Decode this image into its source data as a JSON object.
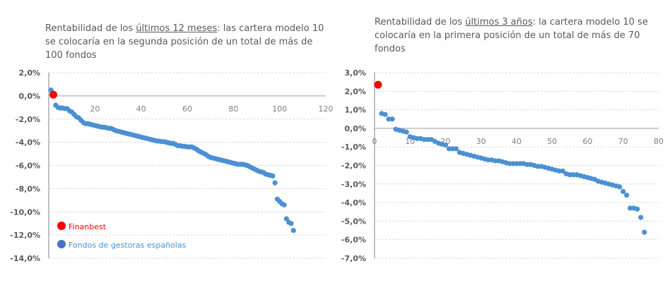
{
  "colors": {
    "fund": "#4a90d4",
    "finanbest": "#ff0000",
    "legend_fund": "#4472c4",
    "grid": "#d9d9d9",
    "axis": "#bfbfbf"
  },
  "chart_data": [
    {
      "type": "scatter",
      "title_parts": [
        "Rentabilidad de los ",
        "últimos 12 meses",
        ": las cartera modelo 10 se colocaría en la segunda posición de un total de más de 100 fondos"
      ],
      "xlim": [
        0,
        120
      ],
      "ylim": [
        -14,
        2
      ],
      "x_ticks": [
        "20",
        "40",
        "60",
        "80",
        "100",
        "120"
      ],
      "y_ticks": [
        "2,0%",
        "0,0%",
        "-2,0%",
        "-4,0%",
        "-6,0%",
        "-8,0%",
        "-10,0%",
        "-12,0%",
        "-14,0%"
      ],
      "grid": true,
      "legend": "bottom-left",
      "series": [
        {
          "name": "Finanbest",
          "points": [
            [
              2,
              0.1
            ]
          ]
        },
        {
          "name": "Fondos  de gestoras  españolas",
          "points": [
            [
              1,
              0.5
            ],
            [
              3,
              -0.8
            ],
            [
              4,
              -1.0
            ],
            [
              5,
              -1.05
            ],
            [
              6,
              -1.05
            ],
            [
              7,
              -1.1
            ],
            [
              8,
              -1.1
            ],
            [
              9,
              -1.3
            ],
            [
              10,
              -1.4
            ],
            [
              11,
              -1.6
            ],
            [
              12,
              -1.8
            ],
            [
              13,
              -1.9
            ],
            [
              14,
              -2.1
            ],
            [
              15,
              -2.3
            ],
            [
              16,
              -2.4
            ],
            [
              17,
              -2.4
            ],
            [
              18,
              -2.45
            ],
            [
              19,
              -2.5
            ],
            [
              20,
              -2.55
            ],
            [
              21,
              -2.6
            ],
            [
              22,
              -2.65
            ],
            [
              23,
              -2.7
            ],
            [
              24,
              -2.7
            ],
            [
              25,
              -2.75
            ],
            [
              26,
              -2.8
            ],
            [
              27,
              -2.8
            ],
            [
              28,
              -2.9
            ],
            [
              29,
              -3.0
            ],
            [
              30,
              -3.05
            ],
            [
              31,
              -3.1
            ],
            [
              32,
              -3.15
            ],
            [
              33,
              -3.2
            ],
            [
              34,
              -3.25
            ],
            [
              35,
              -3.3
            ],
            [
              36,
              -3.35
            ],
            [
              37,
              -3.4
            ],
            [
              38,
              -3.45
            ],
            [
              39,
              -3.5
            ],
            [
              40,
              -3.55
            ],
            [
              41,
              -3.6
            ],
            [
              42,
              -3.65
            ],
            [
              43,
              -3.7
            ],
            [
              44,
              -3.75
            ],
            [
              45,
              -3.8
            ],
            [
              46,
              -3.85
            ],
            [
              47,
              -3.9
            ],
            [
              48,
              -3.9
            ],
            [
              49,
              -3.95
            ],
            [
              50,
              -3.95
            ],
            [
              51,
              -4.0
            ],
            [
              52,
              -4.05
            ],
            [
              53,
              -4.1
            ],
            [
              54,
              -4.1
            ],
            [
              55,
              -4.2
            ],
            [
              56,
              -4.3
            ],
            [
              57,
              -4.3
            ],
            [
              58,
              -4.35
            ],
            [
              59,
              -4.35
            ],
            [
              60,
              -4.4
            ],
            [
              61,
              -4.4
            ],
            [
              62,
              -4.4
            ],
            [
              63,
              -4.5
            ],
            [
              64,
              -4.6
            ],
            [
              65,
              -4.75
            ],
            [
              66,
              -4.85
            ],
            [
              67,
              -4.95
            ],
            [
              68,
              -5.05
            ],
            [
              69,
              -5.2
            ],
            [
              70,
              -5.3
            ],
            [
              71,
              -5.35
            ],
            [
              72,
              -5.4
            ],
            [
              73,
              -5.45
            ],
            [
              74,
              -5.5
            ],
            [
              75,
              -5.55
            ],
            [
              76,
              -5.6
            ],
            [
              77,
              -5.65
            ],
            [
              78,
              -5.7
            ],
            [
              79,
              -5.75
            ],
            [
              80,
              -5.8
            ],
            [
              81,
              -5.85
            ],
            [
              82,
              -5.9
            ],
            [
              83,
              -5.9
            ],
            [
              84,
              -5.9
            ],
            [
              85,
              -5.95
            ],
            [
              86,
              -6.0
            ],
            [
              87,
              -6.1
            ],
            [
              88,
              -6.2
            ],
            [
              89,
              -6.3
            ],
            [
              90,
              -6.4
            ],
            [
              91,
              -6.5
            ],
            [
              92,
              -6.55
            ],
            [
              93,
              -6.6
            ],
            [
              94,
              -6.75
            ],
            [
              95,
              -6.8
            ],
            [
              96,
              -6.85
            ],
            [
              97,
              -6.9
            ],
            [
              98,
              -7.5
            ],
            [
              99,
              -8.9
            ],
            [
              100,
              -9.1
            ],
            [
              101,
              -9.3
            ],
            [
              102,
              -9.4
            ],
            [
              103,
              -10.6
            ],
            [
              104,
              -10.9
            ],
            [
              105,
              -11.0
            ],
            [
              106,
              -11.6
            ]
          ]
        }
      ]
    },
    {
      "type": "scatter",
      "title_parts": [
        "Rentabilidad de los ",
        "últimos 3 años",
        ": la cartera modelo 10 se colocaría en la primera posición de un total de más de 70 fondos"
      ],
      "xlim": [
        0,
        80
      ],
      "ylim": [
        -7,
        3
      ],
      "x_ticks": [
        "0",
        "10",
        "20",
        "30",
        "40",
        "50",
        "60",
        "70",
        "80"
      ],
      "y_ticks": [
        "3,0%",
        "2,0%",
        "1,0%",
        "0,0%",
        "-1,0%",
        "-2,0%",
        "-3,0%",
        "-4,0%",
        "-5,0%",
        "-6,0%",
        "-7,0%"
      ],
      "grid": true,
      "series": [
        {
          "name": "Finanbest",
          "points": [
            [
              1,
              2.35
            ]
          ]
        },
        {
          "name": "Fondos  de gestoras  españolas",
          "points": [
            [
              2,
              0.8
            ],
            [
              3,
              0.75
            ],
            [
              4,
              0.5
            ],
            [
              5,
              0.5
            ],
            [
              6,
              -0.05
            ],
            [
              7,
              -0.1
            ],
            [
              8,
              -0.15
            ],
            [
              9,
              -0.2
            ],
            [
              10,
              -0.45
            ],
            [
              11,
              -0.5
            ],
            [
              12,
              -0.55
            ],
            [
              13,
              -0.55
            ],
            [
              14,
              -0.6
            ],
            [
              15,
              -0.6
            ],
            [
              16,
              -0.6
            ],
            [
              17,
              -0.7
            ],
            [
              18,
              -0.8
            ],
            [
              19,
              -0.85
            ],
            [
              20,
              -0.9
            ],
            [
              21,
              -1.1
            ],
            [
              22,
              -1.1
            ],
            [
              23,
              -1.1
            ],
            [
              24,
              -1.3
            ],
            [
              25,
              -1.35
            ],
            [
              26,
              -1.4
            ],
            [
              27,
              -1.45
            ],
            [
              28,
              -1.5
            ],
            [
              29,
              -1.55
            ],
            [
              30,
              -1.6
            ],
            [
              31,
              -1.65
            ],
            [
              32,
              -1.7
            ],
            [
              33,
              -1.7
            ],
            [
              34,
              -1.75
            ],
            [
              35,
              -1.75
            ],
            [
              36,
              -1.8
            ],
            [
              37,
              -1.85
            ],
            [
              38,
              -1.9
            ],
            [
              39,
              -1.9
            ],
            [
              40,
              -1.9
            ],
            [
              41,
              -1.9
            ],
            [
              42,
              -1.9
            ],
            [
              43,
              -1.95
            ],
            [
              44,
              -1.95
            ],
            [
              45,
              -2.0
            ],
            [
              46,
              -2.05
            ],
            [
              47,
              -2.05
            ],
            [
              48,
              -2.1
            ],
            [
              49,
              -2.15
            ],
            [
              50,
              -2.2
            ],
            [
              51,
              -2.25
            ],
            [
              52,
              -2.3
            ],
            [
              53,
              -2.3
            ],
            [
              54,
              -2.45
            ],
            [
              55,
              -2.5
            ],
            [
              56,
              -2.5
            ],
            [
              57,
              -2.5
            ],
            [
              58,
              -2.55
            ],
            [
              59,
              -2.6
            ],
            [
              60,
              -2.65
            ],
            [
              61,
              -2.7
            ],
            [
              62,
              -2.75
            ],
            [
              63,
              -2.85
            ],
            [
              64,
              -2.9
            ],
            [
              65,
              -2.95
            ],
            [
              66,
              -3.0
            ],
            [
              67,
              -3.05
            ],
            [
              68,
              -3.1
            ],
            [
              69,
              -3.15
            ],
            [
              70,
              -3.4
            ],
            [
              71,
              -3.6
            ],
            [
              72,
              -4.3
            ],
            [
              73,
              -4.3
            ],
            [
              74,
              -4.35
            ],
            [
              75,
              -4.8
            ],
            [
              76,
              -5.6
            ]
          ]
        }
      ]
    }
  ]
}
